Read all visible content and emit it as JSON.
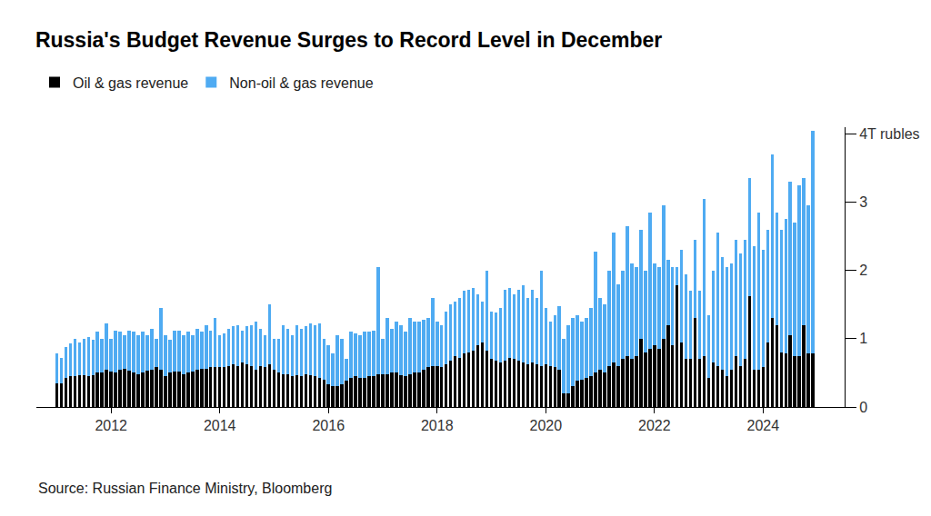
{
  "chart_data": {
    "type": "bar",
    "title": "Russia's Budget Revenue Surges to Record Level in December",
    "source": "Source: Russian Finance Ministry, Bloomberg",
    "stacked": true,
    "grid": false,
    "legend": "top-left",
    "categories": [
      null,
      null,
      null,
      null,
      null,
      null,
      null,
      null,
      null,
      null,
      null,
      null,
      "2012",
      null,
      null,
      null,
      null,
      null,
      null,
      null,
      null,
      null,
      null,
      null,
      null,
      null,
      null,
      null,
      null,
      null,
      null,
      null,
      null,
      null,
      null,
      null,
      "2014",
      null,
      null,
      null,
      null,
      null,
      null,
      null,
      null,
      null,
      null,
      null,
      null,
      null,
      null,
      null,
      null,
      null,
      null,
      null,
      null,
      null,
      null,
      null,
      "2016",
      null,
      null,
      null,
      null,
      null,
      null,
      null,
      null,
      null,
      null,
      null,
      null,
      null,
      null,
      null,
      null,
      null,
      null,
      null,
      null,
      null,
      null,
      null,
      "2018",
      null,
      null,
      null,
      null,
      null,
      null,
      null,
      null,
      null,
      null,
      null,
      null,
      null,
      null,
      null,
      null,
      null,
      null,
      null,
      null,
      null,
      null,
      null,
      "2020",
      null,
      null,
      null,
      null,
      null,
      null,
      null,
      null,
      null,
      null,
      null,
      null,
      null,
      null,
      null,
      null,
      null,
      null,
      null,
      null,
      null,
      null,
      null,
      "2022",
      null,
      null,
      null,
      null,
      null,
      null,
      null,
      null,
      null,
      null,
      null,
      null,
      null,
      null,
      null,
      null,
      null,
      null,
      null,
      null,
      null,
      null,
      null,
      "2024",
      null,
      null,
      null,
      null,
      null,
      null,
      null,
      null,
      null,
      null,
      null
    ],
    "series": [
      {
        "name": "Oil & gas revenue",
        "color": "#000000",
        "values": [
          0.35,
          0.34,
          0.43,
          0.45,
          0.45,
          0.46,
          0.46,
          0.45,
          0.47,
          0.5,
          0.5,
          0.55,
          0.52,
          0.5,
          0.55,
          0.56,
          0.53,
          0.5,
          0.48,
          0.5,
          0.53,
          0.55,
          0.58,
          0.55,
          0.45,
          0.5,
          0.52,
          0.52,
          0.48,
          0.5,
          0.52,
          0.55,
          0.56,
          0.56,
          0.58,
          0.58,
          0.58,
          0.58,
          0.6,
          0.62,
          0.6,
          0.65,
          0.62,
          0.6,
          0.55,
          0.6,
          0.58,
          0.62,
          0.55,
          0.5,
          0.48,
          0.48,
          0.45,
          0.47,
          0.45,
          0.48,
          0.47,
          0.45,
          0.42,
          0.4,
          0.33,
          0.3,
          0.3,
          0.33,
          0.38,
          0.42,
          0.45,
          0.43,
          0.43,
          0.45,
          0.45,
          0.48,
          0.48,
          0.48,
          0.5,
          0.5,
          0.47,
          0.45,
          0.48,
          0.5,
          0.5,
          0.55,
          0.58,
          0.6,
          0.6,
          0.58,
          0.62,
          0.68,
          0.75,
          0.72,
          0.78,
          0.8,
          0.82,
          0.9,
          0.95,
          0.82,
          0.7,
          0.68,
          0.65,
          0.68,
          0.72,
          0.7,
          0.68,
          0.65,
          0.62,
          0.65,
          0.62,
          0.6,
          0.62,
          0.6,
          0.58,
          0.55,
          0.2,
          0.2,
          0.3,
          0.38,
          0.4,
          0.42,
          0.45,
          0.5,
          0.55,
          0.5,
          0.6,
          0.65,
          0.6,
          0.7,
          0.75,
          0.7,
          0.75,
          1.0,
          0.8,
          0.85,
          0.9,
          0.85,
          1.0,
          1.2,
          0.9,
          1.78,
          0.95,
          0.7,
          0.7,
          1.3,
          0.7,
          0.75,
          0.43,
          0.65,
          0.6,
          0.55,
          0.45,
          0.55,
          0.75,
          0.6,
          0.7,
          1.62,
          0.55,
          0.55,
          0.58,
          0.95,
          1.3,
          1.2,
          0.8,
          0.78,
          1.05,
          0.75,
          0.75,
          1.2,
          0.78,
          0.78
        ]
      },
      {
        "name": "Non-oil & gas revenue",
        "color": "#4fabf2",
        "values": [
          0.43,
          0.38,
          0.45,
          0.48,
          0.55,
          0.49,
          0.54,
          0.57,
          0.51,
          0.6,
          0.5,
          0.67,
          0.48,
          0.62,
          0.55,
          0.49,
          0.59,
          0.6,
          0.57,
          0.6,
          0.52,
          0.6,
          0.42,
          0.9,
          0.6,
          0.48,
          0.6,
          0.6,
          0.57,
          0.6,
          0.53,
          0.6,
          0.54,
          0.64,
          0.54,
          0.72,
          0.47,
          0.5,
          0.55,
          0.56,
          0.6,
          0.47,
          0.56,
          0.6,
          0.7,
          0.55,
          0.47,
          0.88,
          0.45,
          0.5,
          0.72,
          0.67,
          0.6,
          0.73,
          0.7,
          0.7,
          0.75,
          0.75,
          0.8,
          0.6,
          0.57,
          0.48,
          0.75,
          0.67,
          0.32,
          0.68,
          0.63,
          0.62,
          0.67,
          0.65,
          0.67,
          1.57,
          0.52,
          0.82,
          0.65,
          0.75,
          0.73,
          0.65,
          0.82,
          0.75,
          0.75,
          0.73,
          0.72,
          1.0,
          0.65,
          0.62,
          0.78,
          0.82,
          0.8,
          0.88,
          0.92,
          0.92,
          0.93,
          0.75,
          0.6,
          1.18,
          0.7,
          0.7,
          0.8,
          1.04,
          1.03,
          0.95,
          1.04,
          1.13,
          0.98,
          1.07,
          0.98,
          1.4,
          0.83,
          0.65,
          0.77,
          0.93,
          0.8,
          1.0,
          1.0,
          0.97,
          0.85,
          0.88,
          1.0,
          1.78,
          1.05,
          1.0,
          1.4,
          1.9,
          1.2,
          1.3,
          1.9,
          1.4,
          1.3,
          1.6,
          1.2,
          2.0,
          1.2,
          1.2,
          1.95,
          0.95,
          1.15,
          0.27,
          1.35,
          1.25,
          1.0,
          1.15,
          1.0,
          2.3,
          0.92,
          1.35,
          1.95,
          1.65,
          1.6,
          1.55,
          1.7,
          1.65,
          1.75,
          1.73,
          1.8,
          2.3,
          1.72,
          1.65,
          2.4,
          1.65,
          1.8,
          1.97,
          2.25,
          1.95,
          2.5,
          2.15,
          2.17,
          3.27
        ]
      }
    ],
    "ylim": [
      0,
      4.1
    ],
    "yticks": [
      0,
      1,
      2,
      3,
      {
        "value": 4,
        "label": "4T rubles"
      }
    ]
  }
}
